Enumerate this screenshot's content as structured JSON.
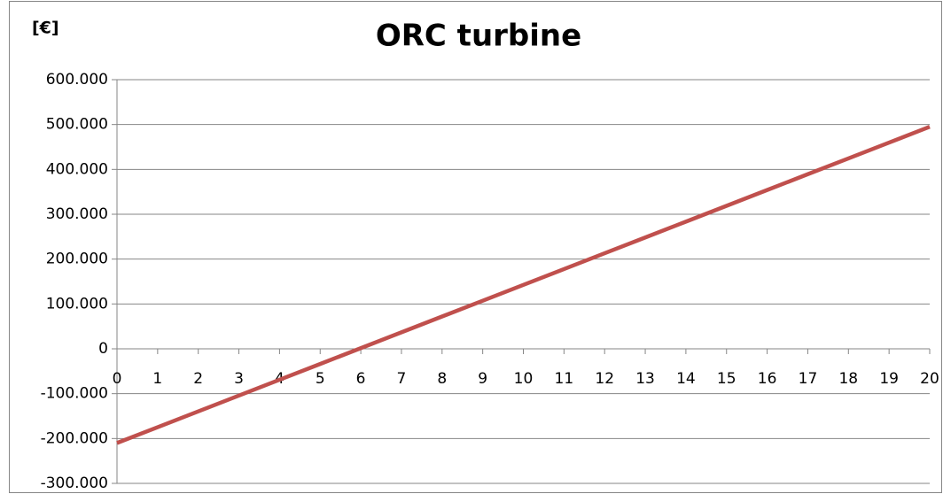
{
  "chart_data": {
    "type": "line",
    "title": "ORC turbine",
    "y_label": "[€]",
    "x": [
      0,
      1,
      2,
      3,
      4,
      5,
      6,
      7,
      8,
      9,
      10,
      11,
      12,
      13,
      14,
      15,
      16,
      17,
      18,
      19,
      20
    ],
    "series": [
      {
        "name": "ORC turbine",
        "color": "#c0504d",
        "values": [
          -210000,
          -174750,
          -139500,
          -104250,
          -69000,
          -33750,
          1500,
          36750,
          72000,
          107250,
          142500,
          177750,
          213000,
          248250,
          283500,
          318750,
          354000,
          389250,
          424500,
          459750,
          495000
        ]
      }
    ],
    "xlim": [
      0,
      20
    ],
    "xticks": [
      0,
      1,
      2,
      3,
      4,
      5,
      6,
      7,
      8,
      9,
      10,
      11,
      12,
      13,
      14,
      15,
      16,
      17,
      18,
      19,
      20
    ],
    "ylim": [
      -300000,
      600000
    ],
    "yticks": [
      {
        "value": -300000,
        "label": "-300.000"
      },
      {
        "value": -200000,
        "label": "-200.000"
      },
      {
        "value": -100000,
        "label": "-100.000"
      },
      0,
      {
        "value": 100000,
        "label": "100.000"
      },
      {
        "value": 200000,
        "label": "200.000"
      },
      {
        "value": 300000,
        "label": "300.000"
      },
      {
        "value": 400000,
        "label": "400.000"
      },
      {
        "value": 500000,
        "label": "500.000"
      },
      {
        "value": 600000,
        "label": "600.000"
      }
    ],
    "grid": true
  }
}
